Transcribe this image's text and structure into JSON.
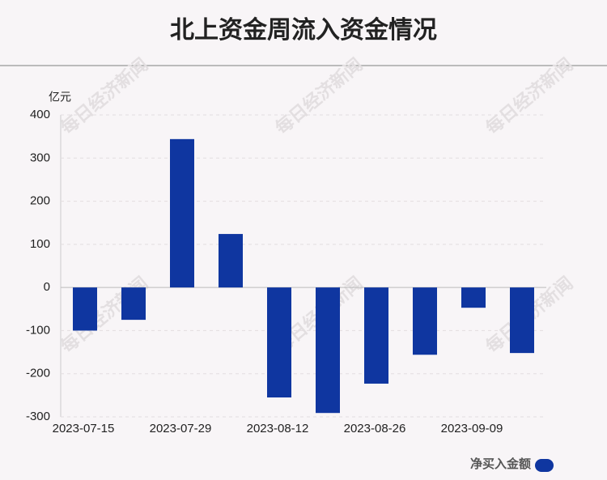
{
  "chart_data": {
    "type": "bar",
    "title": "北上资金周流入资金情况",
    "y_unit": "亿元",
    "watermark": "每日经济新闻",
    "categories": [
      "2023-07-15",
      null,
      "2023-07-29",
      null,
      "2023-08-12",
      null,
      "2023-08-26",
      null,
      "2023-09-09",
      null
    ],
    "series": [
      {
        "name": "净买入金额",
        "color": "#0f36a0",
        "values": [
          -100,
          -75,
          344,
          124,
          -255,
          -291,
          -223,
          -156,
          -47,
          -152
        ]
      }
    ],
    "ylim": [
      -300,
      400
    ],
    "yticks": [
      -300,
      -200,
      -100,
      0,
      100,
      200,
      300,
      400
    ],
    "grid": true,
    "legend": "bottom-right"
  }
}
